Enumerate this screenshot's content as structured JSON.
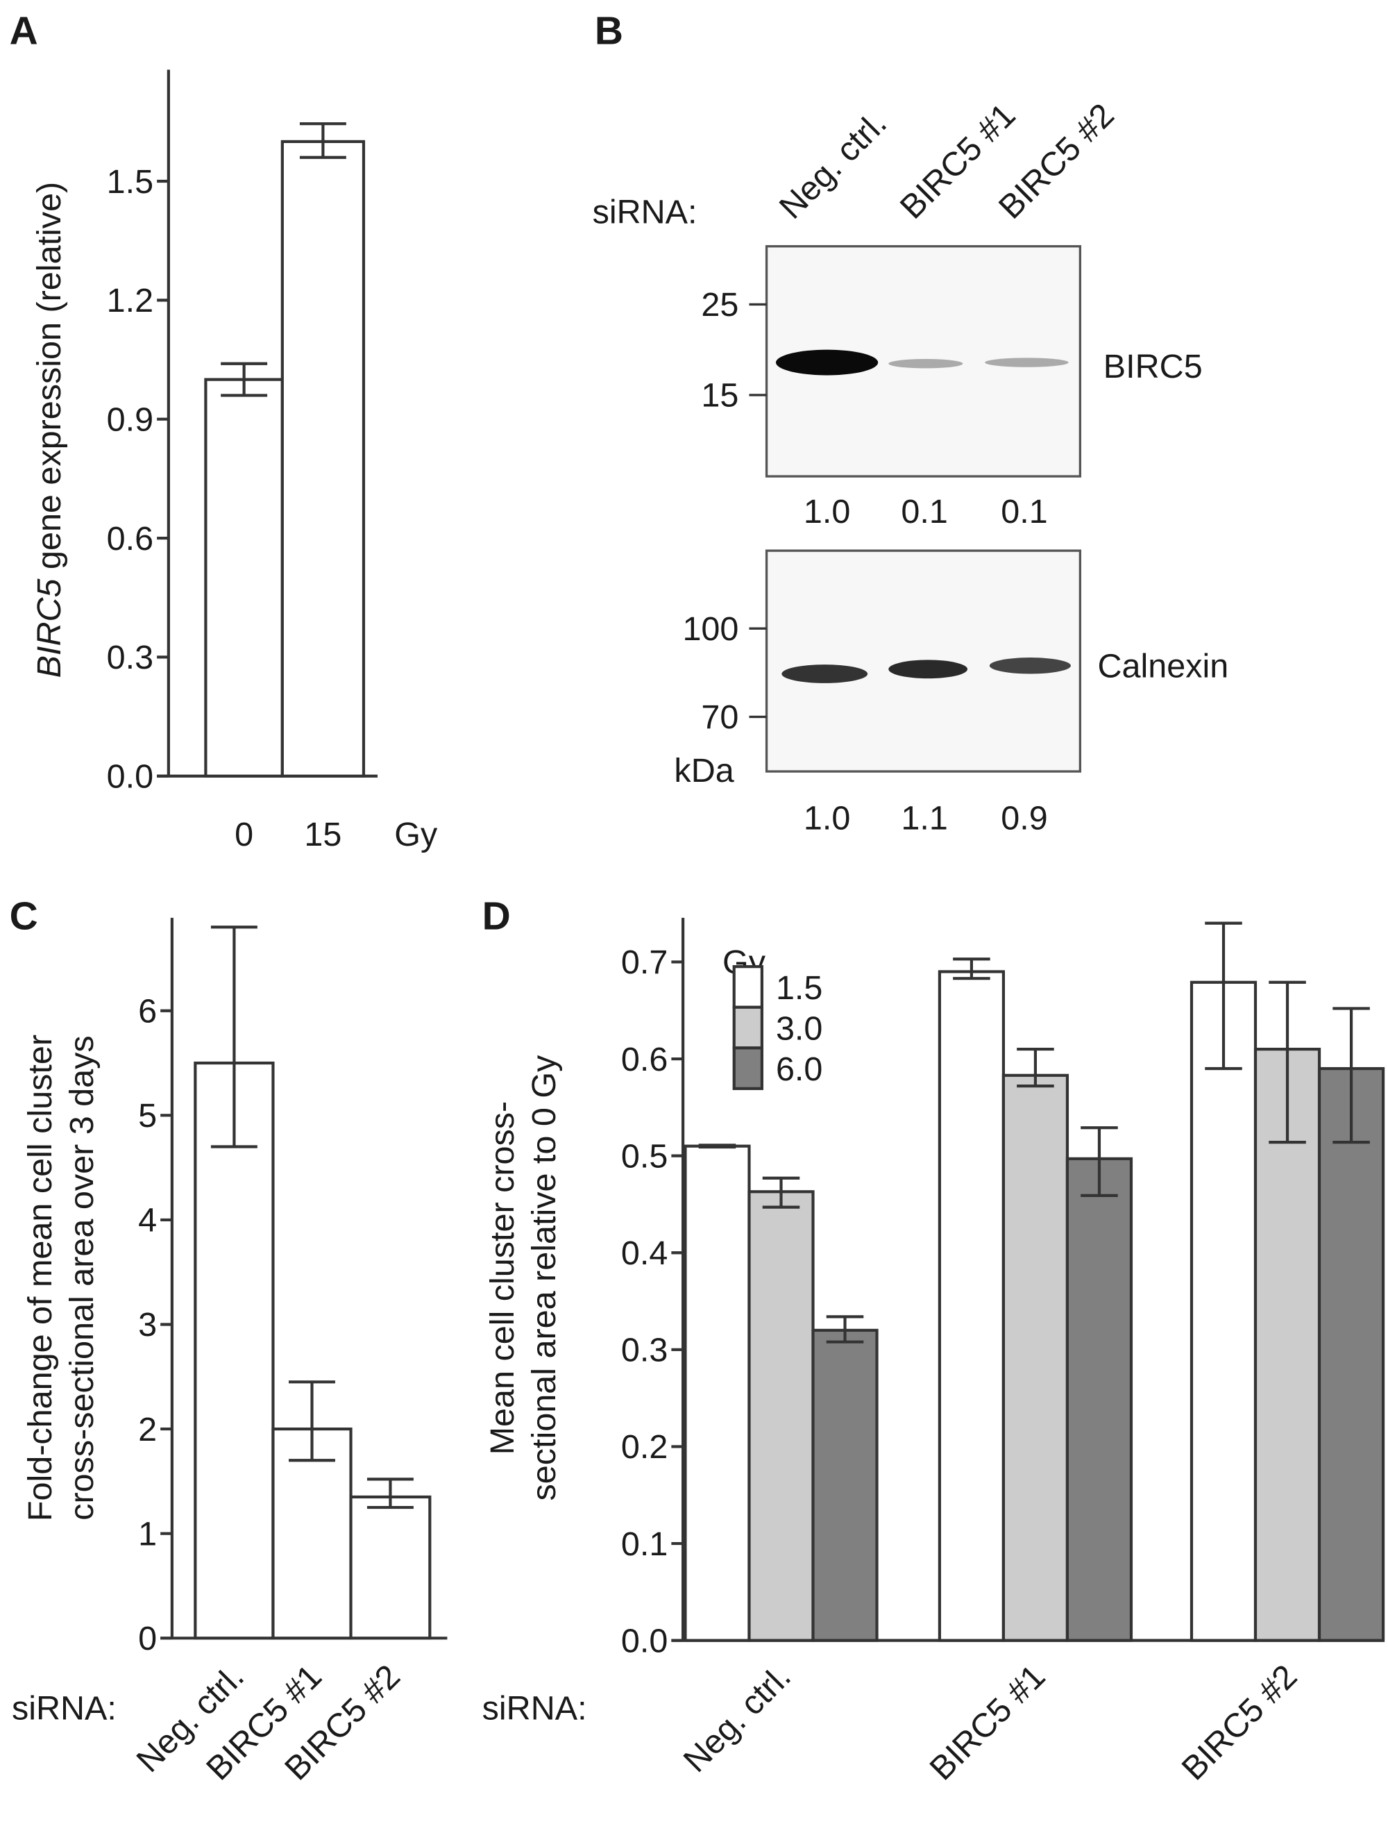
{
  "panels": {
    "A": "A",
    "B": "B",
    "C": "C",
    "D": "D"
  },
  "blot": {
    "sirna_label": "siRNA:",
    "lanes": [
      "Neg. ctrl.",
      "BIRC5 #1",
      "BIRC5 #2"
    ],
    "top": {
      "protein": "BIRC5",
      "markers": [
        "25",
        "15"
      ],
      "quant": [
        "1.0",
        "0.1",
        "0.1"
      ],
      "band_intensity": [
        1.0,
        0.1,
        0.1
      ]
    },
    "bottom": {
      "protein": "Calnexin",
      "markers": [
        "100",
        "70"
      ],
      "unit": "kDa",
      "quant": [
        "1.0",
        "1.1",
        "0.9"
      ]
    }
  },
  "chart_data": [
    {
      "panel": "A",
      "type": "bar",
      "categories": [
        "0",
        "15"
      ],
      "xunit": "Gy",
      "values": [
        1.0,
        1.6
      ],
      "errors_low": [
        0.96,
        1.56
      ],
      "errors_high": [
        1.04,
        1.645
      ],
      "ylabel_italic": "BIRC5",
      "ylabel": " gene expression (relative)",
      "yticks": [
        "0.0",
        "0.3",
        "0.6",
        "0.9",
        "1.2",
        "1.5"
      ],
      "ylim": [
        0,
        1.8
      ]
    },
    {
      "panel": "C",
      "type": "bar",
      "xprefix": "siRNA:",
      "categories": [
        "Neg. ctrl.",
        "BIRC5 #1",
        "BIRC5 #2"
      ],
      "values": [
        5.5,
        2.0,
        1.35
      ],
      "errors_low": [
        4.7,
        1.7,
        1.25
      ],
      "errors_high": [
        6.8,
        2.45,
        1.52
      ],
      "ylabel_lines": [
        "Fold-change of mean cell cluster",
        "cross-sectional area over 3 days"
      ],
      "yticks": [
        "0",
        "1",
        "2",
        "3",
        "4",
        "5",
        "6"
      ],
      "ylim": [
        0,
        6.9
      ]
    },
    {
      "panel": "D",
      "type": "bar",
      "xprefix": "siRNA:",
      "categories": [
        "Neg. ctrl.",
        "BIRC5 #1",
        "BIRC5 #2"
      ],
      "legend_title": "Gy",
      "legend_position": "top-left",
      "series": [
        {
          "name": "1.5",
          "color": "#ffffff",
          "values": [
            0.51,
            0.69,
            0.679
          ],
          "errors_low": [
            0.509,
            0.683,
            0.59
          ],
          "errors_high": [
            0.511,
            0.703,
            0.74
          ]
        },
        {
          "name": "3.0",
          "color": "#cccccc",
          "values": [
            0.463,
            0.583,
            0.61
          ],
          "errors_low": [
            0.447,
            0.572,
            0.514
          ],
          "errors_high": [
            0.477,
            0.61,
            0.679
          ]
        },
        {
          "name": "6.0",
          "color": "#808080",
          "values": [
            0.32,
            0.497,
            0.59
          ],
          "errors_low": [
            0.308,
            0.459,
            0.514
          ],
          "errors_high": [
            0.334,
            0.529,
            0.652
          ]
        }
      ],
      "ylabel_lines": [
        "Mean cell cluster cross-",
        "sectional area relative to 0 Gy"
      ],
      "yticks": [
        "0.0",
        "0.1",
        "0.2",
        "0.3",
        "0.4",
        "0.5",
        "0.6",
        "0.7"
      ],
      "ylim": [
        0,
        0.75
      ]
    }
  ]
}
